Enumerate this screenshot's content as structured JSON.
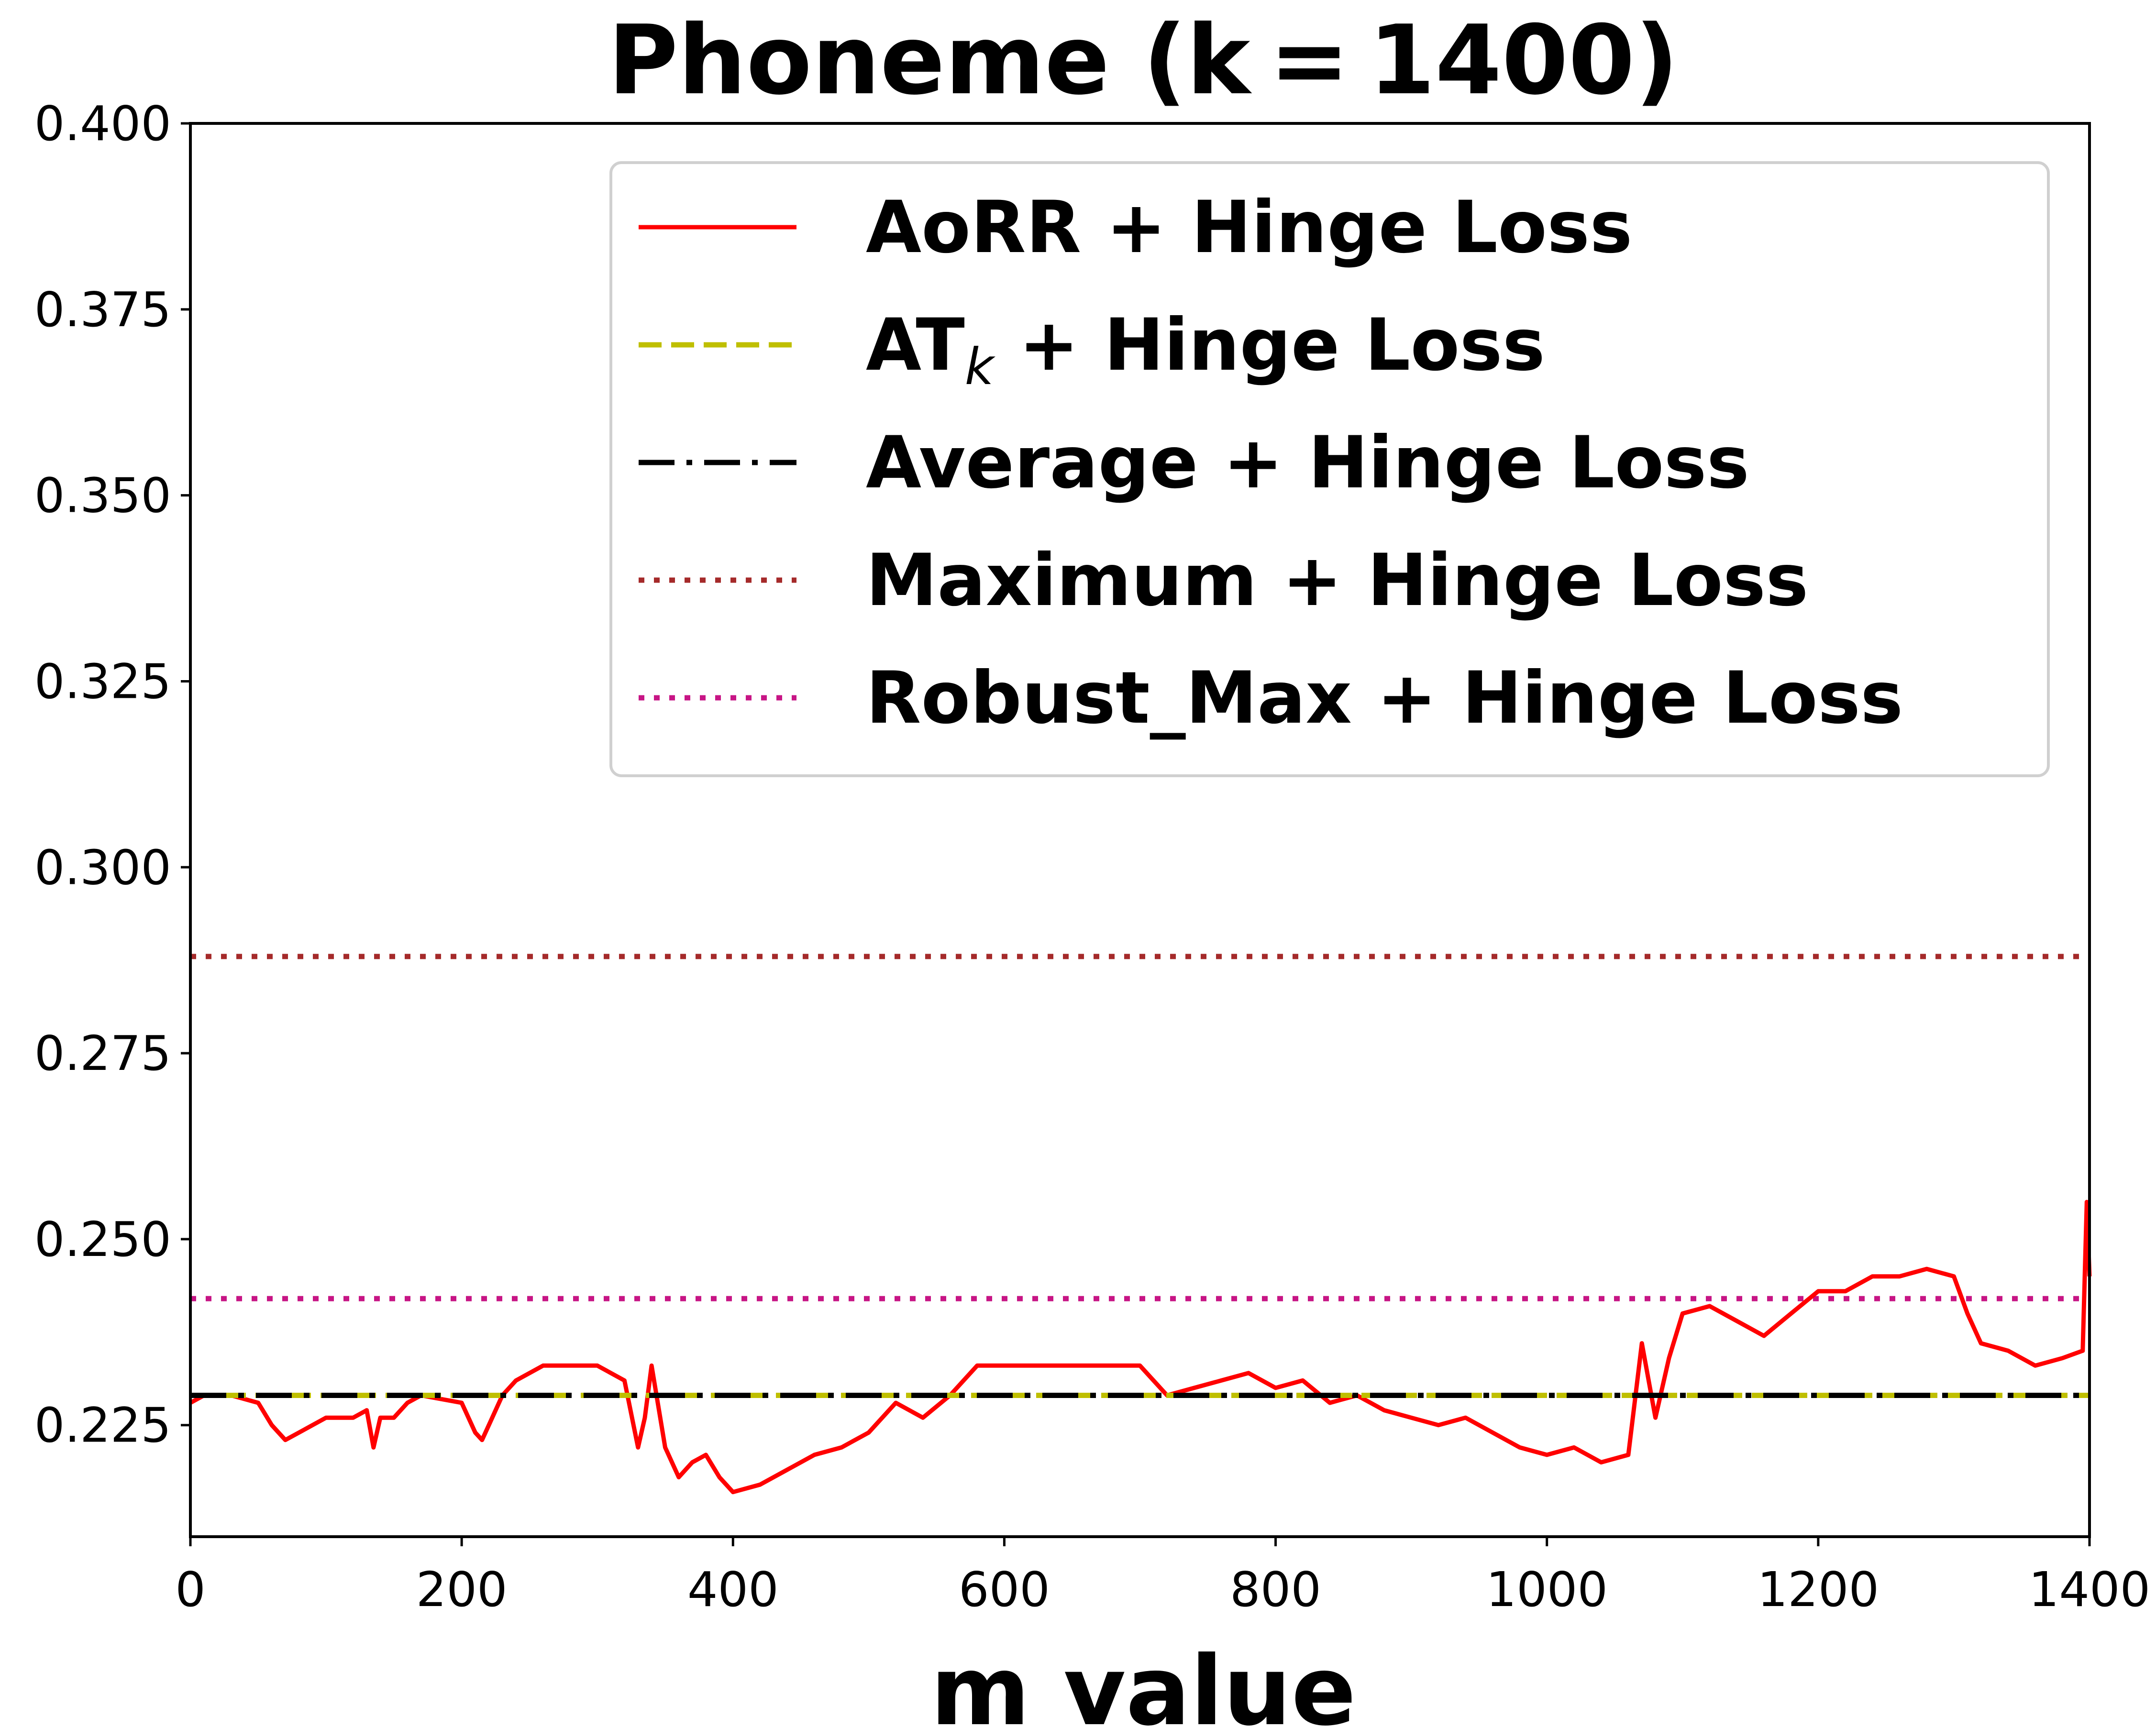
{
  "chart_data": {
    "type": "line",
    "title": "Phoneme (k = 1400)",
    "xlabel": "m value",
    "ylabel": "",
    "xlim": [
      0,
      1400
    ],
    "ylim": [
      0.21,
      0.4
    ],
    "xticks": [
      "0",
      "200",
      "400",
      "600",
      "800",
      "1000",
      "1200",
      "1400"
    ],
    "yticks": [
      "0.225",
      "0.250",
      "0.275",
      "0.300",
      "0.325",
      "0.350",
      "0.375",
      "0.400"
    ],
    "grid": false,
    "legend_position": "top-right",
    "series": [
      {
        "name": "AoRR + Hinge Loss",
        "name_base": "AoRR + Hinge Loss",
        "color": "#ff0000",
        "style": "solid",
        "x": [
          0,
          10,
          30,
          50,
          60,
          70,
          80,
          100,
          120,
          130,
          135,
          140,
          150,
          160,
          170,
          200,
          210,
          215,
          220,
          230,
          240,
          260,
          280,
          300,
          320,
          330,
          335,
          340,
          350,
          360,
          370,
          380,
          390,
          400,
          420,
          440,
          460,
          480,
          500,
          520,
          540,
          560,
          580,
          600,
          650,
          700,
          720,
          740,
          760,
          780,
          800,
          820,
          840,
          860,
          880,
          900,
          920,
          940,
          960,
          980,
          1000,
          1020,
          1040,
          1060,
          1070,
          1080,
          1090,
          1100,
          1120,
          1140,
          1160,
          1180,
          1200,
          1220,
          1240,
          1260,
          1280,
          1300,
          1310,
          1320,
          1340,
          1360,
          1380,
          1395,
          1398,
          1400
        ],
        "values": [
          0.228,
          0.229,
          0.229,
          0.228,
          0.225,
          0.223,
          0.224,
          0.226,
          0.226,
          0.227,
          0.222,
          0.226,
          0.226,
          0.228,
          0.229,
          0.228,
          0.224,
          0.223,
          0.225,
          0.229,
          0.231,
          0.233,
          0.233,
          0.233,
          0.231,
          0.222,
          0.226,
          0.233,
          0.222,
          0.218,
          0.22,
          0.221,
          0.218,
          0.216,
          0.217,
          0.219,
          0.221,
          0.222,
          0.224,
          0.228,
          0.226,
          0.229,
          0.233,
          0.233,
          0.233,
          0.233,
          0.229,
          0.23,
          0.231,
          0.232,
          0.23,
          0.231,
          0.228,
          0.229,
          0.227,
          0.226,
          0.225,
          0.226,
          0.224,
          0.222,
          0.221,
          0.222,
          0.22,
          0.221,
          0.236,
          0.226,
          0.234,
          0.24,
          0.241,
          0.239,
          0.237,
          0.24,
          0.243,
          0.243,
          0.245,
          0.245,
          0.246,
          0.245,
          0.24,
          0.236,
          0.235,
          0.233,
          0.234,
          0.235,
          0.255,
          0.245
        ]
      },
      {
        "name": "AT",
        "name_base": "AT",
        "name_sub": "k",
        "name_suffix": " + Hinge Loss",
        "color": "#bfbf00",
        "style": "dashed",
        "x": [
          0,
          1400
        ],
        "values": [
          0.229,
          0.229
        ]
      },
      {
        "name": "Average + Hinge Loss",
        "name_base": "Average + Hinge Loss",
        "color": "#000000",
        "style": "dashdot",
        "x": [
          0,
          1400
        ],
        "values": [
          0.229,
          0.229
        ]
      },
      {
        "name": "Maximum + Hinge Loss",
        "name_base": "Maximum + Hinge Loss",
        "color": "#a52a2a",
        "style": "dotted",
        "x": [
          0,
          1400
        ],
        "values": [
          0.288,
          0.288
        ]
      },
      {
        "name": "Robust_Max + Hinge Loss",
        "name_base": "Robust_Max + Hinge Loss",
        "color": "#c71585",
        "style": "dotted",
        "x": [
          0,
          1400
        ],
        "values": [
          0.242,
          0.242
        ]
      }
    ]
  }
}
